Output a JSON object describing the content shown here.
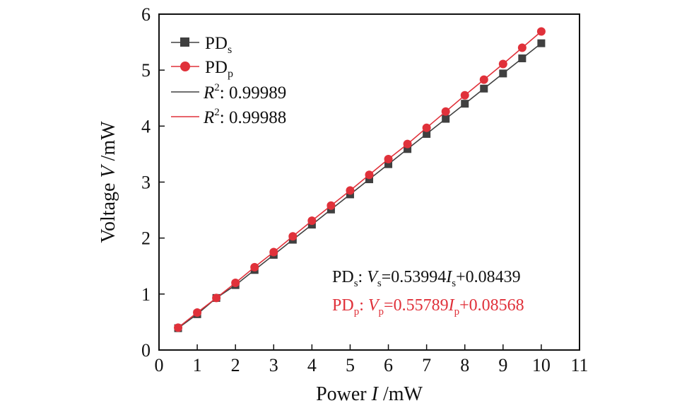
{
  "chart_data": {
    "type": "line",
    "xlabel": {
      "prefix": "Power ",
      "var": "I",
      "suffix": " /mW"
    },
    "ylabel": {
      "prefix": "Voltage ",
      "var": "V",
      "suffix": " /mW"
    },
    "xlim": [
      0,
      11
    ],
    "ylim": [
      0,
      6
    ],
    "x_ticks": [
      "0",
      "1",
      "2",
      "3",
      "4",
      "5",
      "6",
      "7",
      "8",
      "9",
      "10",
      "11"
    ],
    "y_ticks": [
      "0",
      "1",
      "2",
      "3",
      "4",
      "5",
      "6"
    ],
    "x": [
      0.5,
      1,
      1.5,
      2,
      2.5,
      3,
      3.5,
      4,
      4.5,
      5,
      5.5,
      6,
      6.5,
      7,
      7.5,
      8,
      8.5,
      9,
      9.5,
      10
    ],
    "series": [
      {
        "name": "PDs",
        "name_main": "PD",
        "name_sub": "s",
        "color": "#404040",
        "marker": "square",
        "values": [
          0.39,
          0.64,
          0.93,
          1.16,
          1.43,
          1.7,
          1.97,
          2.24,
          2.51,
          2.78,
          3.05,
          3.32,
          3.59,
          3.86,
          4.13,
          4.4,
          4.67,
          4.94,
          5.21,
          5.48
        ]
      },
      {
        "name": "PDp",
        "name_main": "PD",
        "name_sub": "p",
        "color": "#e0313a",
        "marker": "circle",
        "values": [
          0.4,
          0.67,
          0.93,
          1.2,
          1.48,
          1.75,
          2.03,
          2.31,
          2.58,
          2.85,
          3.13,
          3.41,
          3.68,
          3.97,
          4.26,
          4.55,
          4.83,
          5.11,
          5.4,
          5.69
        ]
      }
    ],
    "fit_legend": [
      {
        "label": "R",
        "sup": "2",
        "value": ": 0.99989",
        "color": "#404040"
      },
      {
        "label": "R",
        "sup": "2",
        "value": ": 0.99988",
        "color": "#e0313a"
      }
    ],
    "equations": [
      {
        "color": "#111111",
        "pd": "PD",
        "sub": "s",
        "v": "V",
        "slope": "=0.53994",
        "i": "I",
        "tail": "+0.08439"
      },
      {
        "color": "#e0313a",
        "pd": "PD",
        "sub": "p",
        "v": "V",
        "slope": "=0.55789",
        "i": "I",
        "tail": "+0.08568"
      }
    ],
    "legend_position": "top-left",
    "grid": false
  }
}
